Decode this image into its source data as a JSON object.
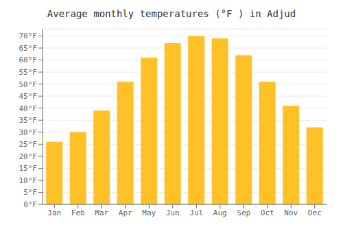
{
  "chart_data": {
    "type": "bar",
    "title": "Average monthly temperatures (°F ) in Adjud",
    "categories": [
      "Jan",
      "Feb",
      "Mar",
      "Apr",
      "May",
      "Jun",
      "Jul",
      "Aug",
      "Sep",
      "Oct",
      "Nov",
      "Dec"
    ],
    "values": [
      26,
      30,
      39,
      51,
      61,
      67,
      70,
      69,
      62,
      51,
      41,
      32
    ],
    "color": "#FFC125",
    "ylim": [
      0,
      73
    ],
    "yticks": [
      {
        "value": 0,
        "label": "0°F"
      },
      {
        "value": 5,
        "label": "5°F"
      },
      {
        "value": 10,
        "label": "10°F"
      },
      {
        "value": 15,
        "label": "15°F"
      },
      {
        "value": 20,
        "label": "20°F"
      },
      {
        "value": 25,
        "label": "25°F"
      },
      {
        "value": 30,
        "label": "30°F"
      },
      {
        "value": 35,
        "label": "35°F"
      },
      {
        "value": 40,
        "label": "40°F"
      },
      {
        "value": 45,
        "label": "45°F"
      },
      {
        "value": 50,
        "label": "50°F"
      },
      {
        "value": 55,
        "label": "55°F"
      },
      {
        "value": 60,
        "label": "60°F"
      },
      {
        "value": 65,
        "label": "65°F"
      },
      {
        "value": 70,
        "label": "70°F"
      }
    ],
    "grid": true
  }
}
